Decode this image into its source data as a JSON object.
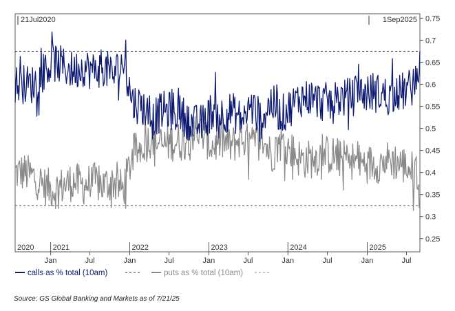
{
  "chart_data": {
    "type": "line",
    "title": "",
    "xlabel": "",
    "ylabel": "",
    "date_start": "21Jul2020",
    "date_end": "1Sep2025",
    "x_range": [
      "2020-07-21",
      "2025-09-01"
    ],
    "ylim": [
      0.22,
      0.76
    ],
    "y_ticks": [
      0.25,
      0.3,
      0.35,
      0.4,
      0.45,
      0.5,
      0.55,
      0.6,
      0.65,
      0.7,
      0.75
    ],
    "y_tick_labels": [
      "0.25",
      "0.3",
      "0.35",
      "0.4",
      "0.45",
      "0.5",
      "0.55",
      "0.6",
      "0.65",
      "0.7",
      "0.75"
    ],
    "month_ticks": [
      {
        "date": "2021-01-01",
        "label": "Jan"
      },
      {
        "date": "2021-07-01",
        "label": "Jul"
      },
      {
        "date": "2022-01-01",
        "label": "Jan"
      },
      {
        "date": "2022-07-01",
        "label": "Jul"
      },
      {
        "date": "2023-01-01",
        "label": "Jan"
      },
      {
        "date": "2023-07-01",
        "label": "Jul"
      },
      {
        "date": "2024-01-01",
        "label": "Jan"
      },
      {
        "date": "2024-07-01",
        "label": "Jul"
      },
      {
        "date": "2025-01-01",
        "label": "Jan"
      },
      {
        "date": "2025-07-01",
        "label": "Jul"
      }
    ],
    "year_labels": [
      {
        "date": "2020-07-21",
        "label": "2020"
      },
      {
        "date": "2021-01-01",
        "label": "2021"
      },
      {
        "date": "2022-01-01",
        "label": "2022"
      },
      {
        "date": "2023-01-01",
        "label": "2023"
      },
      {
        "date": "2024-01-01",
        "label": "2024"
      },
      {
        "date": "2025-01-01",
        "label": "2025"
      }
    ],
    "reference_lines": [
      {
        "y": 0.675,
        "color": "#333333"
      },
      {
        "y": 0.325,
        "color": "#777777"
      }
    ],
    "grid": false,
    "legend_position": "bottom-left",
    "series": [
      {
        "name": "calls as % total (10am)",
        "color": "#0d1a73",
        "x": [
          "2020-07-21",
          "2020-09-01",
          "2020-10-15",
          "2020-12-01",
          "2021-01-15",
          "2021-03-01",
          "2021-04-15",
          "2021-06-01",
          "2021-07-15",
          "2021-09-01",
          "2021-10-15",
          "2021-12-01",
          "2022-01-15",
          "2022-03-01",
          "2022-04-15",
          "2022-06-01",
          "2022-07-15",
          "2022-09-01",
          "2022-10-15",
          "2022-12-01",
          "2023-01-15",
          "2023-03-01",
          "2023-04-15",
          "2023-06-01",
          "2023-07-15",
          "2023-09-01",
          "2023-10-15",
          "2023-12-01",
          "2024-01-15",
          "2024-03-01",
          "2024-04-15",
          "2024-06-01",
          "2024-07-15",
          "2024-09-01",
          "2024-10-15",
          "2024-12-01",
          "2025-01-15",
          "2025-03-01",
          "2025-04-15",
          "2025-06-01",
          "2025-07-15",
          "2025-08-15",
          "2025-09-01"
        ],
        "values": [
          0.6,
          0.6,
          0.6,
          0.63,
          0.65,
          0.64,
          0.63,
          0.64,
          0.63,
          0.64,
          0.62,
          0.65,
          0.56,
          0.55,
          0.52,
          0.54,
          0.54,
          0.53,
          0.51,
          0.51,
          0.54,
          0.53,
          0.54,
          0.52,
          0.55,
          0.52,
          0.56,
          0.53,
          0.55,
          0.57,
          0.57,
          0.56,
          0.56,
          0.57,
          0.57,
          0.58,
          0.58,
          0.58,
          0.57,
          0.58,
          0.59,
          0.6,
          0.675
        ]
      },
      {
        "name": "puts as % total (10am)",
        "color": "#8a8a8a",
        "x": [
          "2020-07-21",
          "2020-09-01",
          "2020-10-15",
          "2020-12-01",
          "2021-01-15",
          "2021-03-01",
          "2021-04-15",
          "2021-06-01",
          "2021-07-15",
          "2021-09-01",
          "2021-10-15",
          "2021-12-01",
          "2022-01-15",
          "2022-03-01",
          "2022-04-15",
          "2022-06-01",
          "2022-07-15",
          "2022-09-01",
          "2022-10-15",
          "2022-12-01",
          "2023-01-15",
          "2023-03-01",
          "2023-04-15",
          "2023-06-01",
          "2023-07-15",
          "2023-09-01",
          "2023-10-15",
          "2023-12-01",
          "2024-01-15",
          "2024-03-01",
          "2024-04-15",
          "2024-06-01",
          "2024-07-15",
          "2024-09-01",
          "2024-10-15",
          "2024-12-01",
          "2025-01-15",
          "2025-03-01",
          "2025-04-15",
          "2025-06-01",
          "2025-07-15",
          "2025-08-15",
          "2025-09-01"
        ],
        "values": [
          0.4,
          0.4,
          0.39,
          0.37,
          0.36,
          0.37,
          0.38,
          0.37,
          0.38,
          0.37,
          0.38,
          0.36,
          0.44,
          0.46,
          0.48,
          0.46,
          0.47,
          0.47,
          0.49,
          0.49,
          0.46,
          0.47,
          0.46,
          0.48,
          0.46,
          0.48,
          0.44,
          0.47,
          0.45,
          0.43,
          0.43,
          0.44,
          0.44,
          0.43,
          0.43,
          0.42,
          0.42,
          0.42,
          0.43,
          0.42,
          0.41,
          0.4,
          0.325
        ]
      }
    ]
  },
  "legend": {
    "calls_label": "calls as % total (10am)",
    "puts_label": "puts as % total (10am)"
  },
  "source_text": "Source: GS Global Banking and Markets as of 7/21/25"
}
